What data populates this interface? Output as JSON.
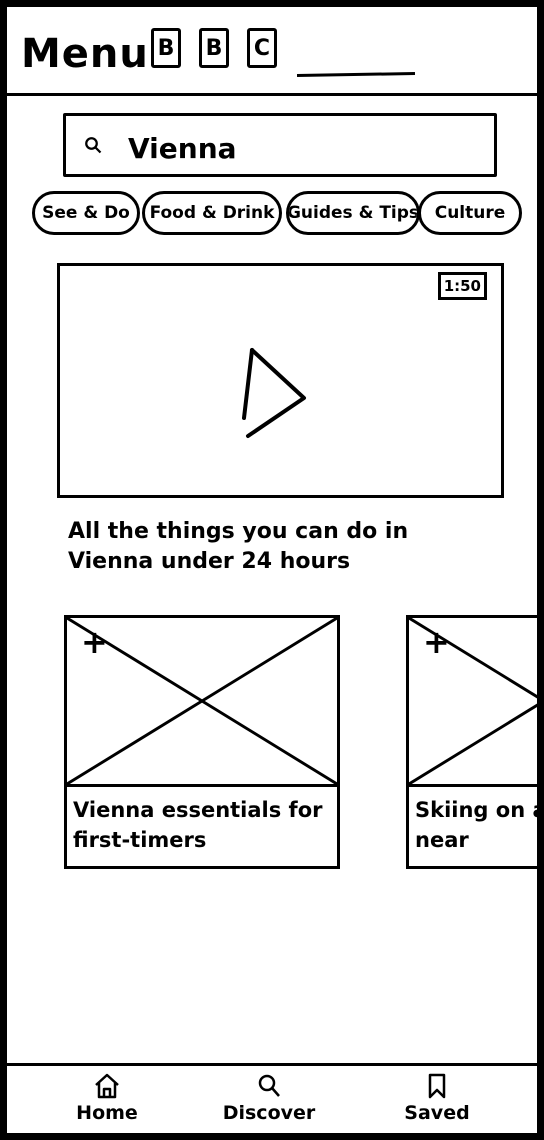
{
  "header": {
    "menu_label": "Menu",
    "buttons": [
      "B",
      "B",
      "C"
    ]
  },
  "search": {
    "value": "Vienna",
    "icon": "search-icon"
  },
  "categories": [
    "See & Do",
    "Food & Drink",
    "Guides & Tips",
    "Culture"
  ],
  "video": {
    "duration": "1:50",
    "caption": "All the things you can do in Vienna under 24 hours",
    "icon": "play-icon"
  },
  "cards": [
    {
      "title": "Vienna essentials for first-timers",
      "action": "+"
    },
    {
      "title": "Skiing on a budget near",
      "action": "+"
    }
  ],
  "bottom_nav": [
    {
      "label": "Home",
      "icon": "home-icon"
    },
    {
      "label": "Discover",
      "icon": "search-icon"
    },
    {
      "label": "Saved",
      "icon": "bookmark-icon"
    }
  ]
}
